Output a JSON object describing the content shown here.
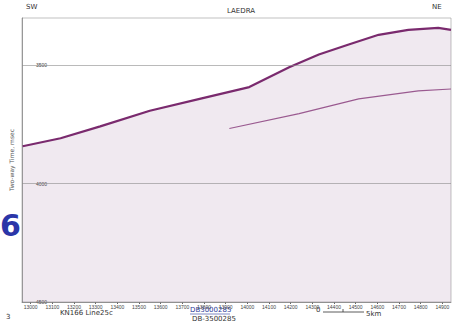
{
  "chart_data": {
    "type": "line",
    "title": "LAEDRA",
    "ylabel": "Two-way Time, msec",
    "annotations": [
      "SW",
      "NE",
      "KN166 Line25c",
      "DB3000285",
      "DB-3500285",
      "0",
      "5km",
      "6",
      "3"
    ],
    "xlim": [
      12960,
      14940
    ],
    "xticks": [
      13000,
      13100,
      13200,
      13300,
      13400,
      13500,
      13600,
      13700,
      13800,
      13900,
      14000,
      14100,
      14200,
      14300,
      14400,
      14500,
      14600,
      14700,
      14800,
      14900
    ],
    "ylim": [
      4500,
      3300
    ],
    "yticks": [
      3500,
      4000,
      4500
    ],
    "grid": true,
    "series": [
      {
        "color": "#7a2a6e",
        "x": [
          12963,
          13138,
          13321,
          13550,
          13780,
          14009,
          14193,
          14330,
          14468,
          14606,
          14743,
          14881,
          14940
        ],
        "values": [
          3842,
          3808,
          3758,
          3692,
          3642,
          3592,
          3508,
          3454,
          3412,
          3371,
          3350,
          3342,
          3350
        ]
      },
      {
        "color": "#9a5a90",
        "x": [
          13917,
          14239,
          14514,
          14789,
          14940
        ],
        "values": [
          3767,
          3704,
          3642,
          3608,
          3600
        ]
      }
    ]
  }
}
